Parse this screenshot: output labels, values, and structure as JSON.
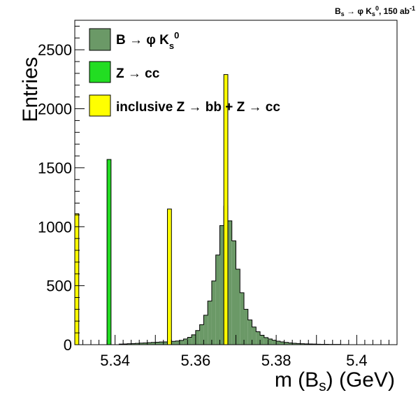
{
  "chart_data": {
    "type": "bar",
    "title": "B_s → φ K_s^0, 150 ab^-1",
    "xlabel": "m (B_s) (GeV)",
    "ylabel": "Entries",
    "xlim": [
      5.33,
      5.41
    ],
    "ylim": [
      0,
      2750
    ],
    "x_ticks": [
      5.34,
      5.36,
      5.38,
      5.4
    ],
    "x_tick_labels": [
      "5.34",
      "5.36",
      "5.38",
      "5.4"
    ],
    "y_ticks": [
      0,
      500,
      1000,
      1500,
      2000,
      2500
    ],
    "y_tick_labels": [
      "0",
      "500",
      "1000",
      "1500",
      "2000",
      "2500"
    ],
    "grid": false,
    "legend_position": "top-left",
    "bin_width": 0.001,
    "series": [
      {
        "name": "B → φ K_s^0",
        "color": "#6b9967",
        "style": "filled-histogram",
        "bins": [
          [
            5.341,
            5
          ],
          [
            5.342,
            6
          ],
          [
            5.343,
            8
          ],
          [
            5.344,
            9
          ],
          [
            5.345,
            11
          ],
          [
            5.346,
            13
          ],
          [
            5.347,
            15
          ],
          [
            5.348,
            17
          ],
          [
            5.349,
            19
          ],
          [
            5.35,
            21
          ],
          [
            5.351,
            23
          ],
          [
            5.352,
            24
          ],
          [
            5.353,
            26
          ],
          [
            5.354,
            28
          ],
          [
            5.355,
            31
          ],
          [
            5.356,
            36
          ],
          [
            5.357,
            48
          ],
          [
            5.358,
            62
          ],
          [
            5.359,
            84
          ],
          [
            5.36,
            120
          ],
          [
            5.361,
            170
          ],
          [
            5.362,
            250
          ],
          [
            5.363,
            370
          ],
          [
            5.364,
            540
          ],
          [
            5.365,
            760
          ],
          [
            5.366,
            1010
          ],
          [
            5.367,
            1175
          ],
          [
            5.368,
            1050
          ],
          [
            5.369,
            880
          ],
          [
            5.37,
            640
          ],
          [
            5.371,
            440
          ],
          [
            5.372,
            300
          ],
          [
            5.373,
            210
          ],
          [
            5.374,
            150
          ],
          [
            5.375,
            110
          ],
          [
            5.376,
            80
          ],
          [
            5.377,
            60
          ],
          [
            5.378,
            48
          ],
          [
            5.379,
            38
          ],
          [
            5.38,
            30
          ],
          [
            5.381,
            24
          ],
          [
            5.382,
            19
          ],
          [
            5.383,
            15
          ],
          [
            5.384,
            12
          ],
          [
            5.385,
            10
          ],
          [
            5.386,
            8
          ],
          [
            5.387,
            7
          ],
          [
            5.388,
            6
          ],
          [
            5.389,
            5
          ],
          [
            5.39,
            4
          ],
          [
            5.391,
            3
          ],
          [
            5.392,
            3
          ],
          [
            5.393,
            2
          ],
          [
            5.394,
            2
          ],
          [
            5.395,
            2
          ],
          [
            5.396,
            1
          ],
          [
            5.397,
            1
          ]
        ]
      },
      {
        "name": "Z → cc",
        "color": "#22dd22",
        "style": "filled-histogram",
        "bins": [
          [
            5.338,
            1570
          ]
        ]
      },
      {
        "name": "inclusive Z → bb + Z → cc",
        "color": "#ffff00",
        "style": "filled-histogram",
        "bins": [
          [
            5.33,
            1110
          ],
          [
            5.353,
            1150
          ],
          [
            5.367,
            2290
          ]
        ]
      }
    ]
  }
}
